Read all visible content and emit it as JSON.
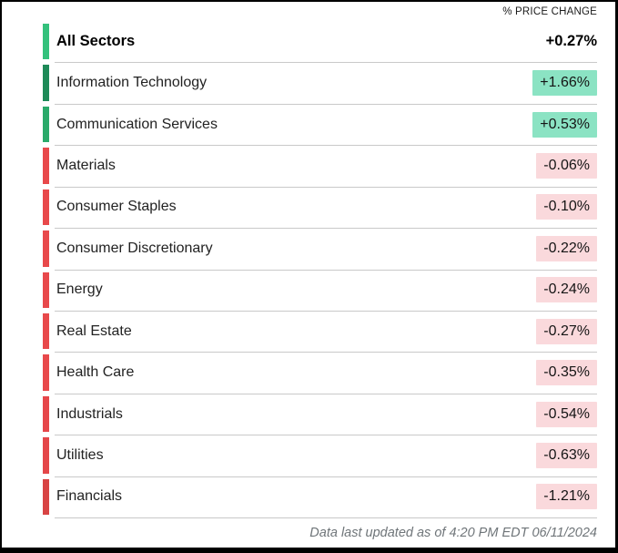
{
  "header": {
    "column_label": "% PRICE CHANGE"
  },
  "summary": {
    "label": "All Sectors",
    "value": "+0.27%",
    "direction": "positive",
    "bar_color": "#34c17c"
  },
  "rows": [
    {
      "label": "Information Technology",
      "value": "+1.66%",
      "direction": "positive",
      "bar_color": "#1e8a58"
    },
    {
      "label": "Communication Services",
      "value": "+0.53%",
      "direction": "positive",
      "bar_color": "#2aaa6a"
    },
    {
      "label": "Materials",
      "value": "-0.06%",
      "direction": "negative",
      "bar_color": "#e8494b"
    },
    {
      "label": "Consumer Staples",
      "value": "-0.10%",
      "direction": "negative",
      "bar_color": "#e8494b"
    },
    {
      "label": "Consumer Discretionary",
      "value": "-0.22%",
      "direction": "negative",
      "bar_color": "#e8494b"
    },
    {
      "label": "Energy",
      "value": "-0.24%",
      "direction": "negative",
      "bar_color": "#e8494b"
    },
    {
      "label": "Real Estate",
      "value": "-0.27%",
      "direction": "negative",
      "bar_color": "#e8494b"
    },
    {
      "label": "Health Care",
      "value": "-0.35%",
      "direction": "negative",
      "bar_color": "#e8494b"
    },
    {
      "label": "Industrials",
      "value": "-0.54%",
      "direction": "negative",
      "bar_color": "#e6474a"
    },
    {
      "label": "Utilities",
      "value": "-0.63%",
      "direction": "negative",
      "bar_color": "#e44649"
    },
    {
      "label": "Financials",
      "value": "-1.21%",
      "direction": "negative",
      "bar_color": "#d84444"
    }
  ],
  "footer": {
    "updated_text": "Data last updated as of 4:20 PM EDT 06/11/2024"
  },
  "colors": {
    "positive_pill_bg": "#8be3c3",
    "negative_pill_bg": "#fad9dc",
    "divider": "#c9c9c9",
    "footer_text": "#6f7579",
    "frame_border": "#000000"
  },
  "chart_data": {
    "type": "table",
    "title": "% PRICE CHANGE",
    "categories": [
      "All Sectors",
      "Information Technology",
      "Communication Services",
      "Materials",
      "Consumer Staples",
      "Consumer Discretionary",
      "Energy",
      "Real Estate",
      "Health Care",
      "Industrials",
      "Utilities",
      "Financials"
    ],
    "values": [
      0.27,
      1.66,
      0.53,
      -0.06,
      -0.1,
      -0.22,
      -0.24,
      -0.27,
      -0.35,
      -0.54,
      -0.63,
      -1.21
    ],
    "value_labels": [
      "+0.27%",
      "+1.66%",
      "+0.53%",
      "-0.06%",
      "-0.10%",
      "-0.22%",
      "-0.24%",
      "-0.27%",
      "-0.35%",
      "-0.54%",
      "-0.63%",
      "-1.21%"
    ],
    "units": "percent price change",
    "sorted": "descending by value",
    "annotations": [
      "Data last updated as of 4:20 PM EDT 06/11/2024"
    ]
  }
}
